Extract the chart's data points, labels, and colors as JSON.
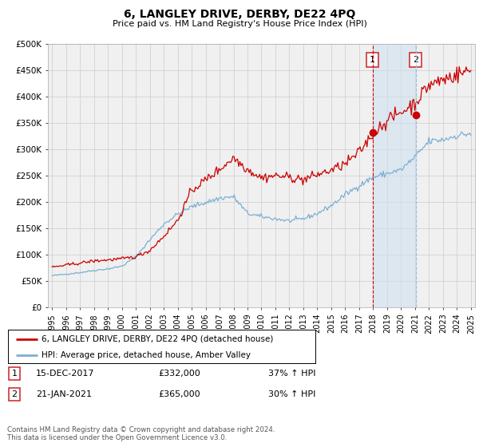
{
  "title": "6, LANGLEY DRIVE, DERBY, DE22 4PQ",
  "subtitle": "Price paid vs. HM Land Registry's House Price Index (HPI)",
  "ylim": [
    0,
    500000
  ],
  "yticks": [
    0,
    50000,
    100000,
    150000,
    200000,
    250000,
    300000,
    350000,
    400000,
    450000,
    500000
  ],
  "ytick_labels": [
    "£0",
    "£50K",
    "£100K",
    "£150K",
    "£200K",
    "£250K",
    "£300K",
    "£350K",
    "£400K",
    "£450K",
    "£500K"
  ],
  "xlim_start": 1994.7,
  "xlim_end": 2025.3,
  "xticks": [
    1995,
    1996,
    1997,
    1998,
    1999,
    2000,
    2001,
    2002,
    2003,
    2004,
    2005,
    2006,
    2007,
    2008,
    2009,
    2010,
    2011,
    2012,
    2013,
    2014,
    2015,
    2016,
    2017,
    2018,
    2019,
    2020,
    2021,
    2022,
    2023,
    2024,
    2025
  ],
  "red_line_color": "#cc0000",
  "blue_line_color": "#7ab0d4",
  "vline1_color": "#cc0000",
  "vline2_color": "#99bbdd",
  "grid_color": "#cccccc",
  "bg_color": "#f0f0f0",
  "marker1_x": 2017.958,
  "marker1_y": 332000,
  "marker2_x": 2021.055,
  "marker2_y": 365000,
  "vline1_x": 2017.958,
  "vline2_x": 2021.055,
  "legend_label_red": "6, LANGLEY DRIVE, DERBY, DE22 4PQ (detached house)",
  "legend_label_blue": "HPI: Average price, detached house, Amber Valley",
  "note1_num": "1",
  "note1_date": "15-DEC-2017",
  "note1_price": "£332,000",
  "note1_hpi": "37% ↑ HPI",
  "note2_num": "2",
  "note2_date": "21-JAN-2021",
  "note2_price": "£365,000",
  "note2_hpi": "30% ↑ HPI",
  "copyright_text": "Contains HM Land Registry data © Crown copyright and database right 2024.\nThis data is licensed under the Open Government Licence v3.0.",
  "blue_hpi_profile": {
    "1995": 60000,
    "1996": 63000,
    "1997": 66000,
    "1998": 70000,
    "1999": 73000,
    "2000": 78000,
    "2001": 96000,
    "2002": 128000,
    "2003": 158000,
    "2004": 177000,
    "2005": 191000,
    "2006": 199000,
    "2007": 207000,
    "2008": 210000,
    "2009": 178000,
    "2010": 172000,
    "2011": 168000,
    "2012": 164000,
    "2013": 168000,
    "2014": 178000,
    "2015": 193000,
    "2016": 214000,
    "2017": 231000,
    "2018": 247000,
    "2019": 254000,
    "2020": 261000,
    "2021": 285000,
    "2022": 315000,
    "2023": 318000,
    "2024": 326000,
    "2025": 330000
  },
  "red_hpi_profile": {
    "1995": 76000,
    "1996": 80000,
    "1997": 84000,
    "1998": 88000,
    "1999": 90000,
    "2000": 92000,
    "2001": 96000,
    "2002": 108000,
    "2003": 135000,
    "2004": 165000,
    "2005": 222000,
    "2006": 242000,
    "2007": 262000,
    "2008": 284000,
    "2009": 262000,
    "2010": 246000,
    "2011": 250000,
    "2012": 247000,
    "2013": 242000,
    "2014": 252000,
    "2015": 260000,
    "2016": 272000,
    "2017": 294000,
    "2018": 330000,
    "2019": 355000,
    "2020": 370000,
    "2021": 388000,
    "2022": 422000,
    "2023": 432000,
    "2024": 442000,
    "2025": 450000
  }
}
